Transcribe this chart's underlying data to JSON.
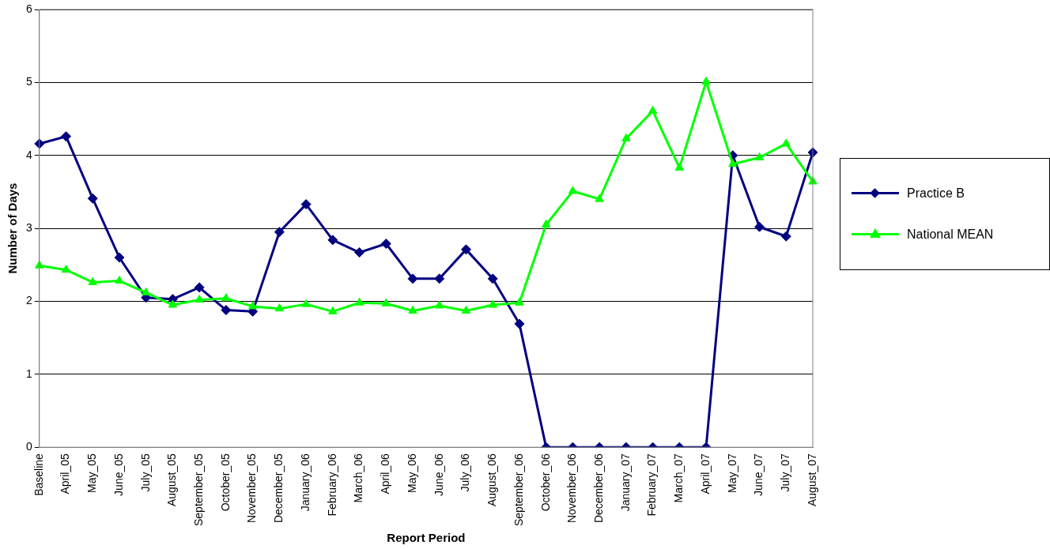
{
  "chart_data": {
    "type": "line",
    "xlabel": "Report Period",
    "ylabel": "Number of Days",
    "categories": [
      "Baseline",
      "April_05",
      "May_05",
      "June_05",
      "July_05",
      "August_05",
      "September_05",
      "October_05",
      "November_05",
      "December_05",
      "January_06",
      "February_06",
      "March_06",
      "April_06",
      "May_06",
      "June_06",
      "July_06",
      "August_06",
      "September_06",
      "October_06",
      "November_06",
      "December_06",
      "January_07",
      "February_07",
      "March_07",
      "April_07",
      "May_07",
      "June_07",
      "July_07",
      "August_07"
    ],
    "series": [
      {
        "name": "Practice B",
        "color": "#000080",
        "marker": "diamond",
        "values": [
          4.16,
          4.26,
          3.41,
          2.6,
          2.05,
          2.03,
          2.19,
          1.88,
          1.86,
          2.95,
          3.33,
          2.84,
          2.67,
          2.79,
          2.31,
          2.31,
          2.71,
          2.31,
          1.69,
          0,
          0,
          0,
          0,
          0,
          0,
          0,
          4.0,
          3.02,
          2.89,
          4.04
        ]
      },
      {
        "name": "National MEAN",
        "color": "#00ff00",
        "marker": "triangle",
        "values": [
          2.49,
          2.43,
          2.26,
          2.28,
          2.12,
          1.95,
          2.02,
          2.04,
          1.93,
          1.9,
          1.96,
          1.86,
          1.98,
          1.97,
          1.87,
          1.94,
          1.87,
          1.95,
          1.98,
          3.05,
          3.51,
          3.4,
          4.23,
          4.61,
          3.83,
          5.01,
          3.88,
          3.97,
          4.16,
          3.64
        ]
      }
    ],
    "ylim": [
      0,
      6
    ],
    "yticks": [
      0,
      1,
      2,
      3,
      4,
      5,
      6
    ],
    "grid": "y",
    "legend": "right",
    "line_style": "solid"
  }
}
